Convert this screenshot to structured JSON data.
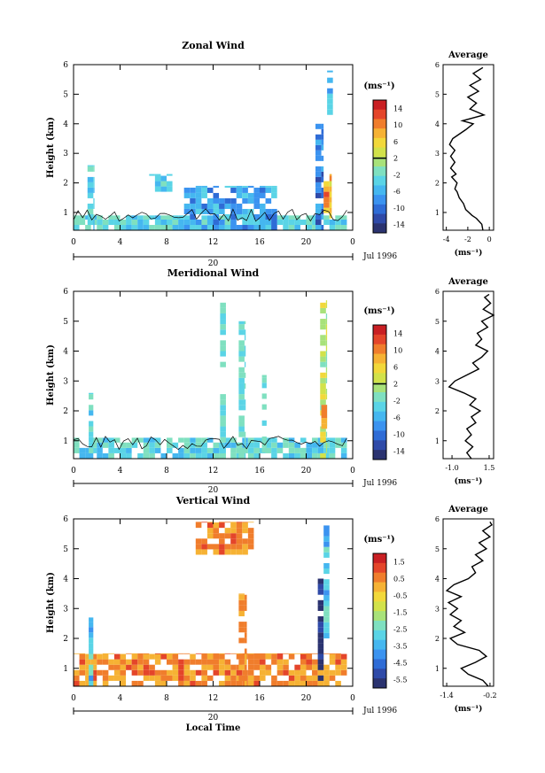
{
  "chart_data": [
    {
      "type": "heatmap",
      "title": "Zonal Wind",
      "ylabel": "Height (km)",
      "xlabel": "",
      "x_ticks": [
        "0",
        "4",
        "8",
        "12",
        "16",
        "20",
        "0"
      ],
      "y_ticks": [
        "1",
        "2",
        "3",
        "4",
        "5",
        "6"
      ],
      "xlim": [
        0,
        24
      ],
      "ylim": [
        0.4,
        6
      ],
      "date_label": "20",
      "month_label": "Jul 1996",
      "colorbar": {
        "unit_label": "(ms⁻¹)",
        "ticks": [
          "14",
          "10",
          "6",
          "2",
          "-2",
          "-6",
          "-10",
          "-14"
        ],
        "range": [
          -16,
          16
        ],
        "marker": 2
      },
      "profile": {
        "title": "Average",
        "x_ticks": [
          "-4",
          "-2",
          "0"
        ],
        "xlim": [
          -4.3,
          0.4
        ],
        "xlabel": "(ms⁻¹)",
        "y_ticks": [
          "1",
          "2",
          "3",
          "4",
          "5",
          "6"
        ],
        "points": [
          [
            -0.6,
            0.4
          ],
          [
            -0.7,
            0.6
          ],
          [
            -1.2,
            0.8
          ],
          [
            -1.6,
            0.9
          ],
          [
            -2.2,
            1.1
          ],
          [
            -2.4,
            1.3
          ],
          [
            -2.8,
            1.5
          ],
          [
            -3.0,
            1.7
          ],
          [
            -3.2,
            1.8
          ],
          [
            -3.0,
            2.0
          ],
          [
            -3.5,
            2.2
          ],
          [
            -3.1,
            2.3
          ],
          [
            -3.6,
            2.5
          ],
          [
            -3.2,
            2.7
          ],
          [
            -3.6,
            2.9
          ],
          [
            -3.2,
            3.1
          ],
          [
            -3.7,
            3.3
          ],
          [
            -3.4,
            3.5
          ],
          [
            -2.2,
            3.8
          ],
          [
            -1.5,
            4.0
          ],
          [
            -2.5,
            4.1
          ],
          [
            -0.5,
            4.3
          ],
          [
            -1.8,
            4.5
          ],
          [
            -1.2,
            4.7
          ],
          [
            -2.0,
            4.9
          ],
          [
            -1.0,
            5.1
          ],
          [
            -1.8,
            5.3
          ],
          [
            -0.8,
            5.5
          ],
          [
            -1.5,
            5.7
          ],
          [
            -0.6,
            5.9
          ]
        ]
      },
      "regions": [
        {
          "x": [
            0.0,
            23.5
          ],
          "y": [
            0.4,
            0.9
          ],
          "range": [
            -6,
            0
          ]
        },
        {
          "x": [
            9.5,
            17.5
          ],
          "y": [
            0.4,
            1.9
          ],
          "range": [
            -10,
            -3
          ]
        },
        {
          "x": [
            1.2,
            1.8
          ],
          "y": [
            0.4,
            2.6
          ],
          "range": [
            -6,
            -1
          ]
        },
        {
          "x": [
            6.5,
            8.5
          ],
          "y": [
            1.7,
            2.3
          ],
          "range": [
            -6,
            -2
          ]
        },
        {
          "x": [
            20.8,
            21.5
          ],
          "y": [
            0.4,
            4.0
          ],
          "range": [
            -14,
            -6
          ]
        },
        {
          "x": [
            21.5,
            22.2
          ],
          "y": [
            0.8,
            2.3
          ],
          "range": [
            4,
            12
          ]
        },
        {
          "x": [
            21.8,
            22.3
          ],
          "y": [
            4.3,
            5.8
          ],
          "range": [
            -8,
            -2
          ]
        }
      ]
    },
    {
      "type": "heatmap",
      "title": "Meridional Wind",
      "ylabel": "Height (km)",
      "xlabel": "",
      "x_ticks": [
        "0",
        "4",
        "8",
        "12",
        "16",
        "20",
        "0"
      ],
      "y_ticks": [
        "1",
        "2",
        "3",
        "4",
        "5",
        "6"
      ],
      "xlim": [
        0,
        24
      ],
      "ylim": [
        0.4,
        6
      ],
      "date_label": "20",
      "month_label": "Jul 1996",
      "colorbar": {
        "unit_label": "(ms⁻¹)",
        "ticks": [
          "14",
          "10",
          "6",
          "2",
          "-2",
          "-6",
          "-10",
          "-14"
        ],
        "range": [
          -16,
          16
        ],
        "marker": 2
      },
      "profile": {
        "title": "Average",
        "x_ticks": [
          "-1.0",
          "1.5"
        ],
        "xlim": [
          -1.6,
          1.8
        ],
        "xlabel": "(ms⁻¹)",
        "y_ticks": [
          "1",
          "2",
          "3",
          "4",
          "5",
          "6"
        ],
        "points": [
          [
            0.3,
            0.4
          ],
          [
            0.0,
            0.6
          ],
          [
            0.4,
            0.8
          ],
          [
            -0.1,
            1.0
          ],
          [
            0.3,
            1.2
          ],
          [
            0.0,
            1.4
          ],
          [
            0.6,
            1.6
          ],
          [
            0.3,
            1.8
          ],
          [
            0.9,
            2.0
          ],
          [
            0.2,
            2.2
          ],
          [
            0.6,
            2.4
          ],
          [
            -0.2,
            2.6
          ],
          [
            -1.2,
            2.8
          ],
          [
            -0.8,
            3.0
          ],
          [
            0.0,
            3.2
          ],
          [
            0.8,
            3.4
          ],
          [
            0.4,
            3.6
          ],
          [
            1.0,
            3.8
          ],
          [
            1.4,
            4.0
          ],
          [
            0.6,
            4.2
          ],
          [
            1.0,
            4.4
          ],
          [
            0.7,
            4.6
          ],
          [
            1.4,
            4.8
          ],
          [
            1.0,
            5.0
          ],
          [
            1.8,
            5.2
          ],
          [
            1.1,
            5.4
          ],
          [
            1.6,
            5.6
          ],
          [
            1.2,
            5.8
          ],
          [
            1.5,
            5.9
          ]
        ]
      },
      "regions": [
        {
          "x": [
            0.0,
            23.5
          ],
          "y": [
            0.4,
            1.1
          ],
          "range": [
            -6,
            0
          ]
        },
        {
          "x": [
            1.3,
            1.7
          ],
          "y": [
            0.4,
            2.6
          ],
          "range": [
            -6,
            0
          ]
        },
        {
          "x": [
            12.6,
            13.1
          ],
          "y": [
            0.4,
            5.7
          ],
          "range": [
            -4,
            0
          ]
        },
        {
          "x": [
            14.2,
            14.8
          ],
          "y": [
            0.4,
            5.0
          ],
          "range": [
            -4,
            0
          ]
        },
        {
          "x": [
            16.2,
            16.6
          ],
          "y": [
            0.6,
            3.2
          ],
          "range": [
            -4,
            0
          ]
        },
        {
          "x": [
            21.2,
            21.8
          ],
          "y": [
            0.4,
            5.7
          ],
          "range": [
            -2,
            6
          ]
        },
        {
          "x": [
            21.3,
            21.8
          ],
          "y": [
            1.4,
            2.2
          ],
          "range": [
            6,
            12
          ]
        }
      ]
    },
    {
      "type": "heatmap",
      "title": "Vertical Wind",
      "ylabel": "Height (km)",
      "xlabel": "Local Time",
      "x_ticks": [
        "0",
        "4",
        "8",
        "12",
        "16",
        "20",
        "0"
      ],
      "y_ticks": [
        "1",
        "2",
        "3",
        "4",
        "5",
        "6"
      ],
      "xlim": [
        0,
        24
      ],
      "ylim": [
        0.4,
        6
      ],
      "date_label": "20",
      "month_label": "Jul 1996",
      "colorbar": {
        "unit_label": "(ms⁻¹)",
        "ticks": [
          "1.5",
          "0.5",
          "-0.5",
          "-1.5",
          "-2.5",
          "-3.5",
          "-4.5",
          "-5.5"
        ],
        "range": [
          -6,
          2
        ],
        "marker": null
      },
      "profile": {
        "title": "Average",
        "x_ticks": [
          "-1.4",
          "-0.2"
        ],
        "xlim": [
          -1.5,
          -0.1
        ],
        "xlabel": "(ms⁻¹)",
        "y_ticks": [
          "1",
          "2",
          "3",
          "4",
          "5",
          "6"
        ],
        "points": [
          [
            -0.25,
            0.4
          ],
          [
            -0.4,
            0.6
          ],
          [
            -0.8,
            0.8
          ],
          [
            -1.0,
            1.0
          ],
          [
            -0.6,
            1.2
          ],
          [
            -0.3,
            1.4
          ],
          [
            -0.5,
            1.6
          ],
          [
            -1.1,
            1.8
          ],
          [
            -1.3,
            2.0
          ],
          [
            -0.9,
            2.2
          ],
          [
            -1.2,
            2.4
          ],
          [
            -1.0,
            2.6
          ],
          [
            -1.3,
            2.8
          ],
          [
            -1.1,
            3.0
          ],
          [
            -1.35,
            3.2
          ],
          [
            -1.0,
            3.4
          ],
          [
            -1.4,
            3.6
          ],
          [
            -1.2,
            3.8
          ],
          [
            -0.8,
            4.0
          ],
          [
            -0.6,
            4.2
          ],
          [
            -0.7,
            4.4
          ],
          [
            -0.4,
            4.6
          ],
          [
            -0.6,
            4.8
          ],
          [
            -0.3,
            5.0
          ],
          [
            -0.5,
            5.2
          ],
          [
            -0.2,
            5.4
          ],
          [
            -0.4,
            5.6
          ],
          [
            -0.15,
            5.8
          ],
          [
            -0.2,
            5.9
          ]
        ]
      },
      "regions": [
        {
          "x": [
            0.0,
            23.5
          ],
          "y": [
            0.4,
            1.5
          ],
          "range": [
            -0.2,
            1.0
          ]
        },
        {
          "x": [
            1.3,
            1.7
          ],
          "y": [
            0.4,
            2.7
          ],
          "range": [
            -4,
            -2
          ]
        },
        {
          "x": [
            14.2,
            14.9
          ],
          "y": [
            0.4,
            3.5
          ],
          "range": [
            -0.2,
            0.8
          ]
        },
        {
          "x": [
            10.5,
            15.5
          ],
          "y": [
            4.8,
            5.9
          ],
          "range": [
            0,
            1
          ]
        },
        {
          "x": [
            21.0,
            21.5
          ],
          "y": [
            0.4,
            4.0
          ],
          "range": [
            -6,
            -5
          ]
        },
        {
          "x": [
            21.5,
            22.0
          ],
          "y": [
            2.0,
            5.8
          ],
          "range": [
            -4,
            -2
          ]
        }
      ]
    }
  ]
}
